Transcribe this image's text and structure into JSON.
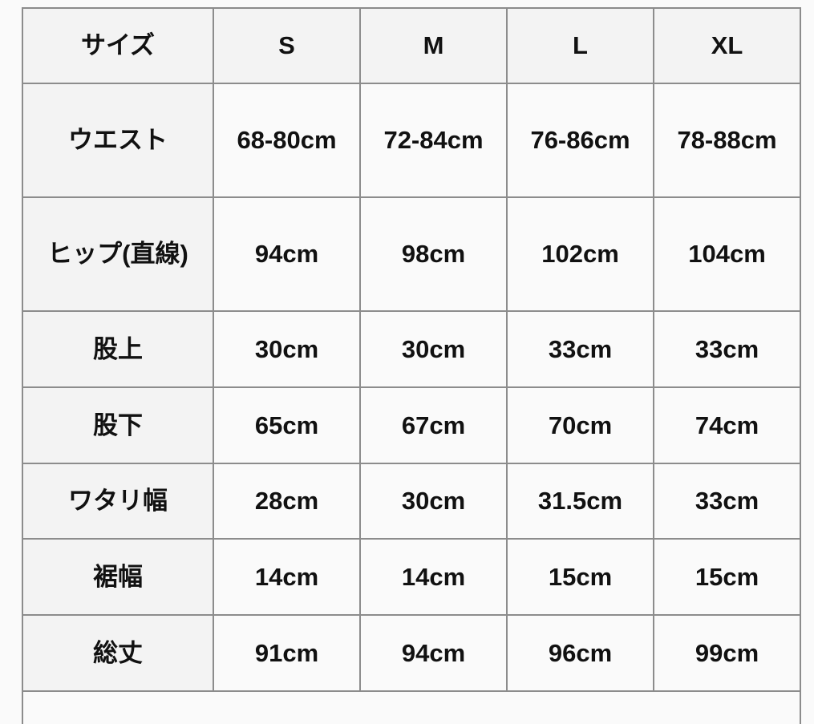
{
  "table": {
    "header": [
      "サイズ",
      "S",
      "M",
      "L",
      "XL"
    ],
    "rows": [
      {
        "label": "ウエスト",
        "values": [
          "68-80cm",
          "72-84cm",
          "76-86cm",
          "78-88cm"
        ]
      },
      {
        "label": "ヒップ(直線)",
        "values": [
          "94cm",
          "98cm",
          "102cm",
          "104cm"
        ]
      },
      {
        "label": "股上",
        "values": [
          "30cm",
          "30cm",
          "33cm",
          "33cm"
        ]
      },
      {
        "label": "股下",
        "values": [
          "65cm",
          "67cm",
          "70cm",
          "74cm"
        ]
      },
      {
        "label": "ワタリ幅",
        "values": [
          "28cm",
          "30cm",
          "31.5cm",
          "33cm"
        ]
      },
      {
        "label": "裾幅",
        "values": [
          "14cm",
          "14cm",
          "15cm",
          "15cm"
        ]
      },
      {
        "label": "総丈",
        "values": [
          "91cm",
          "94cm",
          "96cm",
          "99cm"
        ]
      }
    ]
  },
  "colors": {
    "border": "#8c8c8c",
    "header_bg": "#f3f3f3",
    "cell_bg": "#fafafa"
  }
}
